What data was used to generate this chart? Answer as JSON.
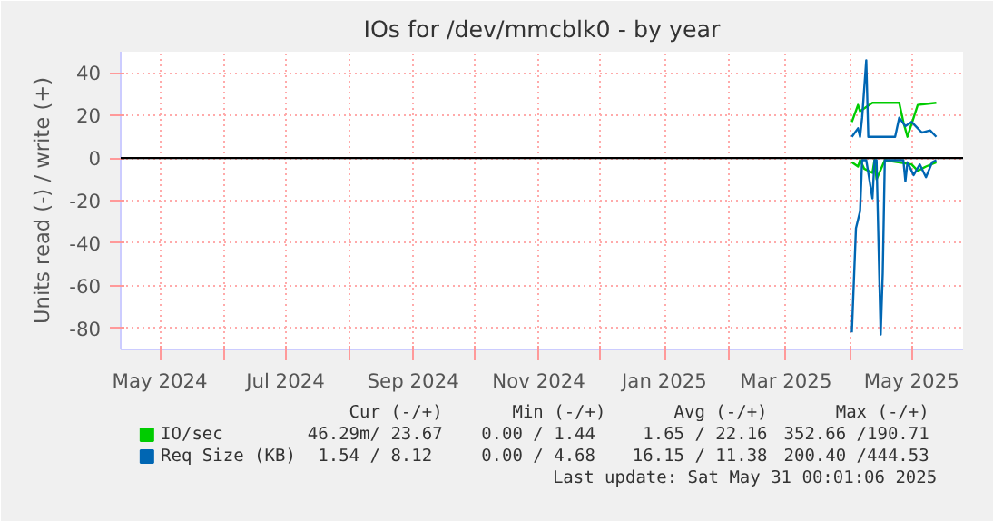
{
  "chart_data": {
    "type": "line",
    "title": "IOs for /dev/mmcblk0 - by year",
    "ylabel": "Units read (-) / write (+)",
    "xlim": [
      "2024-04-12",
      "2025-05-26"
    ],
    "ylim": [
      -90,
      50
    ],
    "yticks": [
      -80,
      -60,
      -40,
      -20,
      0,
      20,
      40
    ],
    "xticks": [
      {
        "value": "2024-05-01",
        "label": "May 2024"
      },
      {
        "value": "2024-06-01",
        "label": null
      },
      {
        "value": "2024-07-01",
        "label": "Jul 2024"
      },
      {
        "value": "2024-08-01",
        "label": null
      },
      {
        "value": "2024-09-01",
        "label": "Sep 2024"
      },
      {
        "value": "2024-10-01",
        "label": null
      },
      {
        "value": "2024-11-01",
        "label": "Nov 2024"
      },
      {
        "value": "2024-12-01",
        "label": null
      },
      {
        "value": "2025-01-01",
        "label": "Jan 2025"
      },
      {
        "value": "2025-02-01",
        "label": null
      },
      {
        "value": "2025-03-01",
        "label": "Mar 2025"
      },
      {
        "value": "2025-04-01",
        "label": null
      },
      {
        "value": "2025-05-01",
        "label": "May 2025"
      }
    ],
    "grid": true,
    "legend": "bottom",
    "ref_lines": [
      {
        "axis": "y",
        "value": 0,
        "color": "#000000"
      }
    ],
    "series": [
      {
        "name": "IO/sec",
        "color": "#00cc00",
        "x": [
          "2025-04-02",
          "2025-04-05",
          "2025-04-06",
          "2025-04-12",
          "2025-04-23",
          "2025-04-25",
          "2025-04-27",
          "2025-04-29",
          "2025-05-04",
          "2025-05-13"
        ],
        "values": [
          17,
          25,
          22,
          26,
          26,
          26,
          17,
          10,
          25,
          26
        ]
      },
      {
        "color": "#00cc00",
        "x": [
          "2025-04-02",
          "2025-04-05",
          "2025-04-06",
          "2025-04-08",
          "2025-04-12",
          "2025-04-13",
          "2025-04-14",
          "2025-04-18",
          "2025-05-01",
          "2025-05-04",
          "2025-05-08",
          "2025-05-13"
        ],
        "values": [
          -2,
          -4,
          -1,
          -5,
          -7,
          -1,
          -10,
          -1,
          -3,
          -6,
          -4,
          -2
        ]
      },
      {
        "name": "Req Size (KB)",
        "color": "#0066b3",
        "x": [
          "2025-04-02",
          "2025-04-05",
          "2025-04-06",
          "2025-04-07",
          "2025-04-09",
          "2025-04-10",
          "2025-04-23",
          "2025-04-25",
          "2025-04-28",
          "2025-05-01",
          "2025-05-04",
          "2025-05-06",
          "2025-05-10",
          "2025-05-13"
        ],
        "values": [
          10,
          14,
          10,
          19,
          46,
          10,
          10,
          19,
          15,
          17,
          14,
          12,
          13,
          10
        ]
      },
      {
        "color": "#0066b3",
        "x": [
          "2025-04-02",
          "2025-04-04",
          "2025-04-06",
          "2025-04-07",
          "2025-04-09",
          "2025-04-12",
          "2025-04-13",
          "2025-04-14",
          "2025-04-16",
          "2025-04-17",
          "2025-04-18",
          "2025-04-27",
          "2025-04-28",
          "2025-04-29",
          "2025-05-02",
          "2025-05-05",
          "2025-05-08",
          "2025-05-11",
          "2025-05-13"
        ],
        "values": [
          -82,
          -33,
          -25,
          -1,
          -1,
          -19,
          -1,
          -1,
          -83,
          -54,
          -1,
          -1,
          -11,
          -2,
          -8,
          -3,
          -9,
          -2,
          -1
        ]
      }
    ],
    "annotations": [
      "Cur (-/+)",
      "Min (-/+)",
      "Avg (-/+)",
      "Max (-/+)",
      "46.29m/ 23.67",
      "0.00 /  1.44",
      "1.65 / 22.16",
      "352.66 /190.71",
      "1.54 /  8.12",
      "0.00 /  4.68",
      "16.15 / 11.38",
      "200.40 /444.53",
      "Last update: Sat May 31 00:01:06 2025"
    ]
  }
}
